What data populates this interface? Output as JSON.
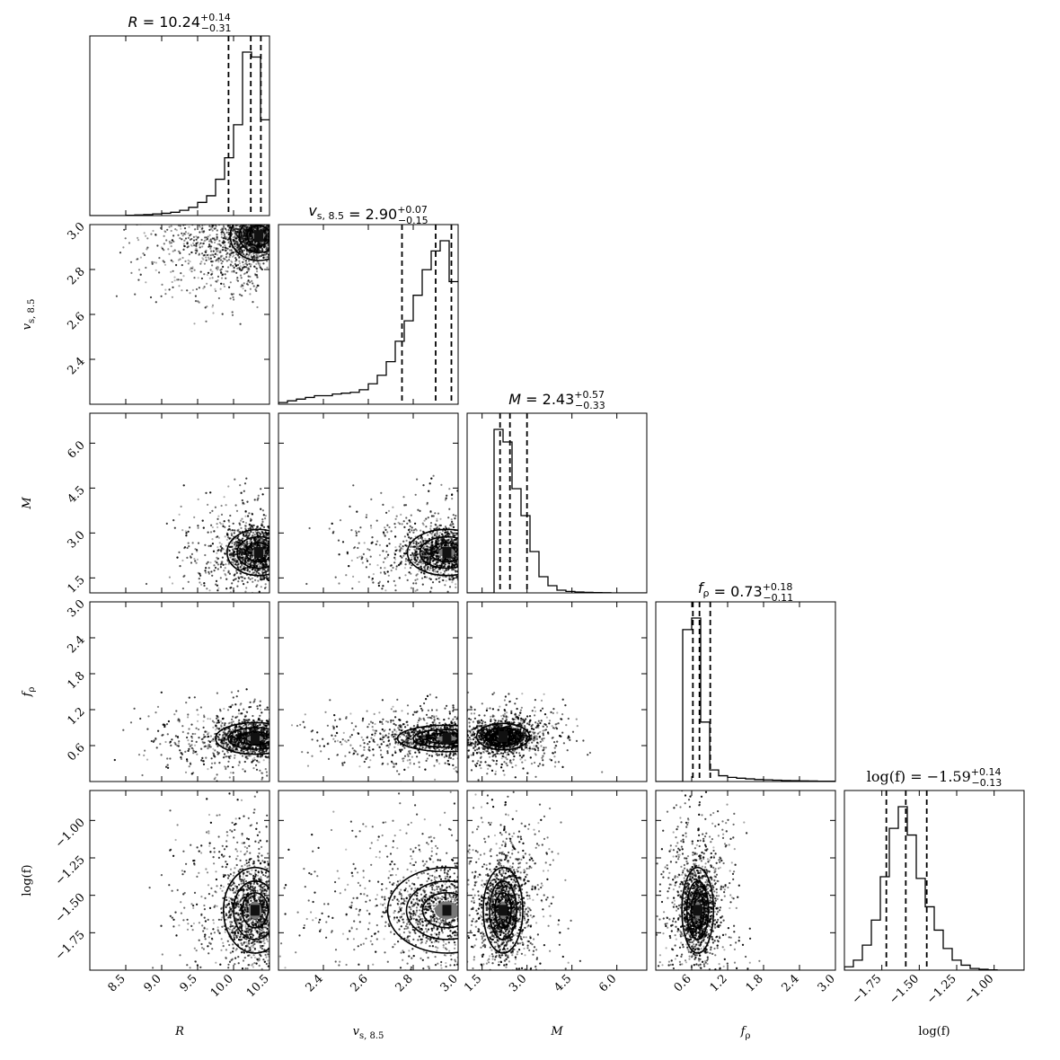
{
  "chart_data": {
    "type": "corner",
    "parameters": [
      {
        "key": "R",
        "label": "R",
        "italic": true,
        "range": [
          8.0,
          10.5
        ],
        "ticks": [
          8.5,
          9.0,
          9.5,
          10.0,
          10.5
        ],
        "tick_labels": [
          "8.5",
          "9.0",
          "9.5",
          "10.0",
          "10.5"
        ],
        "median": 10.24,
        "plus": 0.14,
        "minus": 0.31,
        "title_lhs": "R",
        "title_val": "= 10.24",
        "title_sup": "+0.14",
        "title_sub": "−0.31",
        "hist_edges": [
          8.0,
          8.125,
          8.25,
          8.375,
          8.5,
          8.625,
          8.75,
          8.875,
          9.0,
          9.125,
          9.25,
          9.375,
          9.5,
          9.625,
          9.75,
          9.875,
          10.0,
          10.125,
          10.25,
          10.375,
          10.5
        ],
        "hist_counts": [
          0,
          0,
          0,
          0,
          0.002,
          0.004,
          0.006,
          0.01,
          0.014,
          0.02,
          0.032,
          0.05,
          0.08,
          0.12,
          0.22,
          0.35,
          0.55,
          0.99,
          0.96,
          0.58
        ]
      },
      {
        "key": "vs",
        "label": "v",
        "sub": "s, 8.5",
        "range": [
          2.2,
          3.0
        ],
        "ticks": [
          2.4,
          2.6,
          2.8,
          3.0
        ],
        "tick_labels": [
          "2.4",
          "2.6",
          "2.8",
          "3.0"
        ],
        "median": 2.9,
        "plus": 0.07,
        "minus": 0.15,
        "title_lhs": "v",
        "title_lhs_sub": "s, 8.5",
        "title_val": "= 2.90",
        "title_sup": "+0.07",
        "title_sub": "−0.15",
        "hist_edges": [
          2.2,
          2.24,
          2.28,
          2.32,
          2.36,
          2.4,
          2.44,
          2.48,
          2.52,
          2.56,
          2.6,
          2.64,
          2.68,
          2.72,
          2.76,
          2.8,
          2.84,
          2.88,
          2.92,
          2.96,
          3.0
        ],
        "hist_counts": [
          0.01,
          0.02,
          0.03,
          0.04,
          0.05,
          0.05,
          0.06,
          0.065,
          0.07,
          0.085,
          0.12,
          0.17,
          0.25,
          0.37,
          0.49,
          0.64,
          0.79,
          0.9,
          0.96,
          0.72
        ]
      },
      {
        "key": "M",
        "label": "M",
        "italic": true,
        "range": [
          1.0,
          7.0
        ],
        "ticks": [
          1.5,
          3.0,
          4.5,
          6.0
        ],
        "tick_labels": [
          "1.5",
          "3.0",
          "4.5",
          "6.0"
        ],
        "median": 2.43,
        "plus": 0.57,
        "minus": 0.33,
        "title_lhs": "M",
        "title_val": "= 2.43",
        "title_sup": "+0.57",
        "title_sub": "−0.33",
        "hist_edges": [
          1.0,
          1.3,
          1.6,
          1.9,
          2.2,
          2.5,
          2.8,
          3.1,
          3.4,
          3.7,
          4.0,
          4.3,
          4.6,
          4.9,
          5.2,
          5.5,
          5.8,
          6.1,
          6.4,
          6.7,
          7.0
        ],
        "hist_counts": [
          0,
          0,
          0,
          0.91,
          0.84,
          0.58,
          0.43,
          0.23,
          0.09,
          0.04,
          0.015,
          0.008,
          0.005,
          0.003,
          0.002,
          0.001,
          0,
          0,
          0,
          0
        ]
      },
      {
        "key": "frho",
        "label": "f",
        "sub": "ρ",
        "range": [
          0.0,
          3.0
        ],
        "ticks": [
          0.6,
          1.2,
          1.8,
          2.4,
          3.0
        ],
        "tick_labels": [
          "0.6",
          "1.2",
          "1.8",
          "2.4",
          "3.0"
        ],
        "median": 0.73,
        "plus": 0.18,
        "minus": 0.11,
        "title_lhs": "f",
        "title_lhs_sub": "ρ",
        "title_val": "= 0.73",
        "title_sup": "+0.18",
        "title_sub": "−0.11",
        "hist_edges": [
          0.0,
          0.15,
          0.3,
          0.45,
          0.6,
          0.75,
          0.9,
          1.05,
          1.2,
          1.35,
          1.5,
          1.65,
          1.8,
          1.95,
          2.1,
          2.25,
          2.4,
          2.55,
          2.7,
          2.85,
          3.0
        ],
        "hist_counts": [
          0,
          0,
          0,
          0.92,
          0.99,
          0.36,
          0.07,
          0.035,
          0.025,
          0.02,
          0.016,
          0.012,
          0.01,
          0.008,
          0.006,
          0.005,
          0.004,
          0.003,
          0.002,
          0.002
        ]
      },
      {
        "key": "logf",
        "label": "log(f)",
        "range": [
          -2.0,
          -0.8
        ],
        "ticks": [
          -1.75,
          -1.5,
          -1.25,
          -1.0
        ],
        "tick_labels": [
          "−1.75",
          "−1.50",
          "−1.25",
          "−1.00"
        ],
        "median": -1.59,
        "plus": 0.14,
        "minus": 0.13,
        "title_lhs": "log(f)",
        "title_val": "= −1.59",
        "title_sup": "+0.14",
        "title_sub": "−0.13",
        "hist_edges": [
          -2.0,
          -1.94,
          -1.88,
          -1.82,
          -1.76,
          -1.7,
          -1.64,
          -1.58,
          -1.52,
          -1.46,
          -1.4,
          -1.34,
          -1.28,
          -1.22,
          -1.16,
          -1.1,
          -1.04,
          -0.98,
          -0.92,
          -0.86,
          -0.8
        ],
        "hist_counts": [
          0.02,
          0.06,
          0.15,
          0.3,
          0.56,
          0.85,
          0.98,
          0.81,
          0.55,
          0.38,
          0.24,
          0.13,
          0.06,
          0.03,
          0.01,
          0.005,
          0.002,
          0,
          0,
          0
        ]
      }
    ],
    "pairs": [
      {
        "row": 1,
        "col": 0,
        "peak": [
          10.35,
          2.95
        ],
        "sd": [
          0.18,
          0.05
        ],
        "tail": "up-left"
      },
      {
        "row": 2,
        "col": 0,
        "peak": [
          10.35,
          2.35
        ],
        "sd": [
          0.2,
          0.35
        ]
      },
      {
        "row": 2,
        "col": 1,
        "peak": [
          2.95,
          2.35
        ],
        "sd": [
          0.08,
          0.35
        ]
      },
      {
        "row": 3,
        "col": 0,
        "peak": [
          10.3,
          0.72
        ],
        "sd": [
          0.25,
          0.12
        ]
      },
      {
        "row": 3,
        "col": 1,
        "peak": [
          2.95,
          0.72
        ],
        "sd": [
          0.1,
          0.1
        ]
      },
      {
        "row": 3,
        "col": 2,
        "peak": [
          2.2,
          0.75
        ],
        "sd": [
          0.4,
          0.1
        ]
      },
      {
        "row": 4,
        "col": 0,
        "peak": [
          10.3,
          -1.6
        ],
        "sd": [
          0.2,
          0.13
        ]
      },
      {
        "row": 4,
        "col": 1,
        "peak": [
          2.95,
          -1.6
        ],
        "sd": [
          0.12,
          0.13
        ]
      },
      {
        "row": 4,
        "col": 2,
        "peak": [
          2.2,
          -1.6
        ],
        "sd": [
          0.3,
          0.13
        ]
      },
      {
        "row": 4,
        "col": 3,
        "peak": [
          0.7,
          -1.6
        ],
        "sd": [
          0.12,
          0.13
        ]
      }
    ],
    "legend": "none",
    "grid": false
  }
}
